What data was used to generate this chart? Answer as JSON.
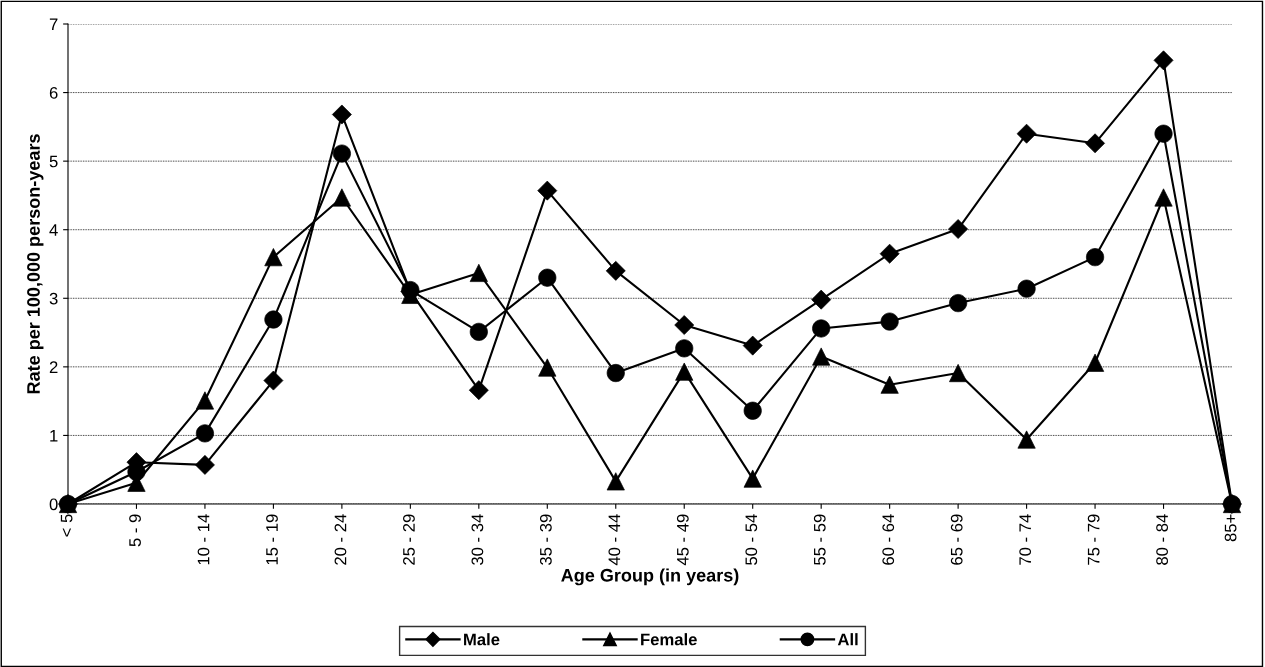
{
  "chart_data": {
    "type": "line",
    "xlabel": "Age Group (in years)",
    "ylabel": "Rate per 100,000 person-years",
    "categories": [
      "< 5",
      "5 - 9",
      "10 - 14",
      "15 - 19",
      "20 - 24",
      "25 - 29",
      "30 - 34",
      "35 - 39",
      "40 - 44",
      "45 - 49",
      "50 - 54",
      "55 - 59",
      "60 - 64",
      "65 - 69",
      "70 - 74",
      "75 - 79",
      "80 - 84",
      "85+"
    ],
    "series": [
      {
        "name": "Male",
        "color": "#000000",
        "marker": "diamond",
        "values": [
          0,
          0.61,
          0.57,
          1.8,
          5.68,
          3.1,
          1.66,
          4.57,
          3.4,
          2.61,
          2.31,
          2.98,
          3.65,
          4.01,
          5.4,
          5.26,
          6.47,
          0
        ]
      },
      {
        "name": "Female",
        "color": "#000000",
        "marker": "triangle",
        "values": [
          0,
          0.31,
          1.51,
          3.6,
          4.47,
          3.05,
          3.37,
          1.99,
          0.33,
          1.93,
          0.37,
          2.15,
          1.74,
          1.91,
          0.94,
          2.06,
          4.47,
          0
        ]
      },
      {
        "name": "All",
        "color": "#000000",
        "marker": "circle",
        "values": [
          0,
          0.47,
          1.03,
          2.69,
          5.11,
          3.12,
          2.51,
          3.3,
          1.91,
          2.27,
          1.36,
          2.56,
          2.66,
          2.93,
          3.14,
          3.6,
          5.4,
          0
        ]
      }
    ],
    "ylim": [
      0,
      7
    ],
    "yticks": [
      0,
      1,
      2,
      3,
      4,
      5,
      6,
      7
    ],
    "grid": "y",
    "legend": "bottom",
    "line_style": "solid"
  }
}
